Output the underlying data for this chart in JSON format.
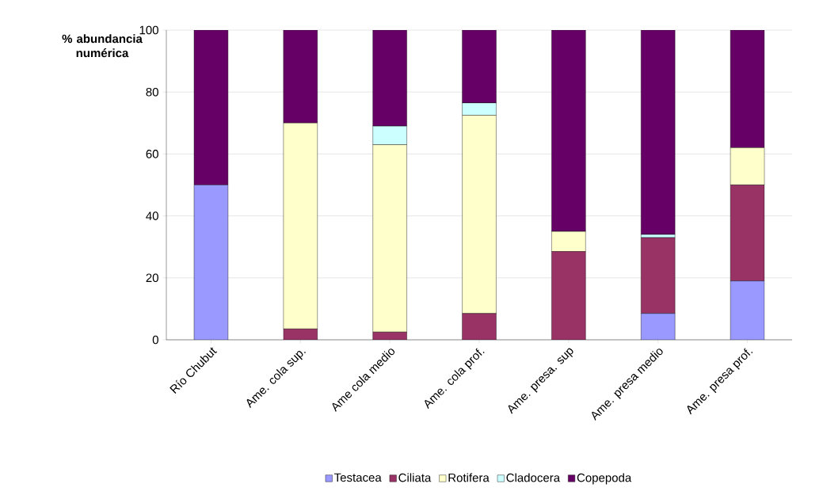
{
  "chart_data": {
    "type": "bar",
    "stacked": true,
    "ylabel": "% abundancia numérica",
    "categories": [
      "Río Chubut",
      "Ame. cola sup.",
      "Ame cola medio",
      "Ame. cola prof.",
      "Ame. presa. sup",
      "Ame. presa medio",
      "Ame. presa prof."
    ],
    "series": [
      {
        "name": "Testacea",
        "color": "#9999ff",
        "values": [
          50,
          0,
          0,
          0,
          0,
          8.5,
          19
        ]
      },
      {
        "name": "Ciliata",
        "color": "#993366",
        "values": [
          0,
          3.5,
          2.5,
          8.5,
          28.5,
          24.5,
          31
        ]
      },
      {
        "name": "Rotifera",
        "color": "#ffffcc",
        "values": [
          0,
          66.5,
          60.5,
          64,
          6.5,
          0,
          12
        ]
      },
      {
        "name": "Cladocera",
        "color": "#ccffff",
        "values": [
          0,
          0,
          6,
          4,
          0,
          1,
          0
        ]
      },
      {
        "name": "Copepoda",
        "color": "#660066",
        "values": [
          50,
          30,
          31,
          23.5,
          65,
          66,
          38
        ]
      }
    ],
    "ylim": [
      0,
      100
    ],
    "yticks": [
      0,
      20,
      40,
      60,
      80,
      100
    ],
    "grid": "y",
    "legend": "bottom"
  }
}
